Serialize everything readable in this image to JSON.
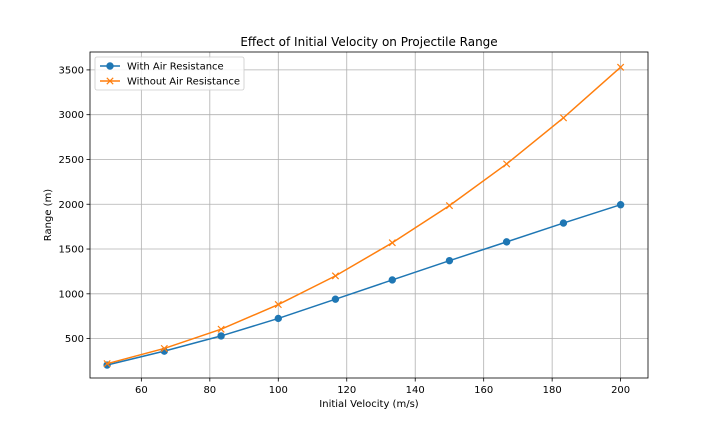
{
  "chart_data": {
    "type": "line",
    "title": "Effect of Initial Velocity on Projectile Range",
    "xlabel": "Initial Velocity (m/s)",
    "ylabel": "Range (m)",
    "xlim": [
      45,
      208
    ],
    "ylim": [
      60,
      3700
    ],
    "xticks": [
      60,
      80,
      100,
      120,
      140,
      160,
      180,
      200
    ],
    "yticks": [
      500,
      1000,
      1500,
      2000,
      2500,
      3000,
      3500
    ],
    "grid": true,
    "legend_position": "top-left",
    "x": [
      50,
      66.7,
      83.3,
      100,
      116.7,
      133.3,
      150,
      166.7,
      183.3,
      200
    ],
    "series": [
      {
        "name": "With Air Resistance",
        "marker": "circle",
        "color": "#1f77b4",
        "values": [
          205,
          360,
          530,
          725,
          940,
          1155,
          1370,
          1580,
          1790,
          1995
        ]
      },
      {
        "name": "Without Air Resistance",
        "marker": "x",
        "color": "#ff7f0e",
        "values": [
          220,
          390,
          605,
          880,
          1200,
          1570,
          1985,
          2450,
          2965,
          3530
        ]
      }
    ]
  }
}
